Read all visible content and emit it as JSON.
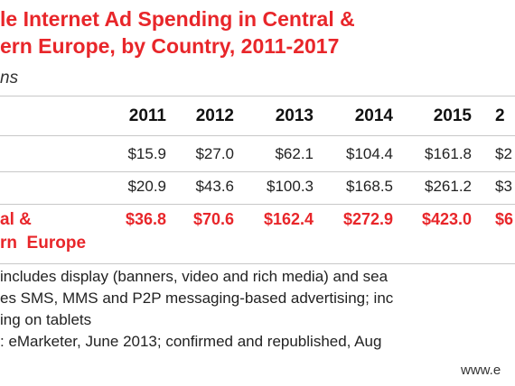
{
  "header": {
    "title": [
      "le Internet Ad Spending in Central &",
      "ern Europe, by Country, 2011-2017"
    ],
    "subtitle": "ns"
  },
  "table": {
    "columns": [
      "2011",
      "2012",
      "2013",
      "2014",
      "2015",
      "2"
    ],
    "rows": [
      {
        "cells": [
          "$15.9",
          "$27.0",
          "$62.1",
          "$104.4",
          "$161.8",
          "$2"
        ]
      },
      {
        "cells": [
          "$20.9",
          "$43.6",
          "$100.3",
          "$168.5",
          "$261.2",
          "$3"
        ]
      },
      {
        "label": [
          "al &",
          "rn  Europe"
        ],
        "cells": [
          "$36.8",
          "$70.6",
          "$162.4",
          "$272.9",
          "$423.0",
          "$6"
        ]
      }
    ]
  },
  "notes": [
    "includes display (banners, video and rich media) and sea",
    "es SMS, MMS and P2P messaging-based advertising; inc",
    "ing on tablets",
    ": eMarketer, June 2013; confirmed and republished, Aug"
  ],
  "footer": "www.e"
}
